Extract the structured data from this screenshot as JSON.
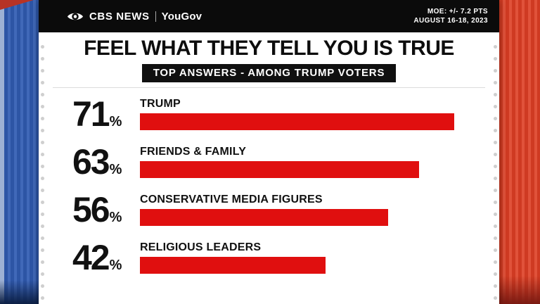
{
  "header": {
    "brand": {
      "cbs": "CBS NEWS",
      "divider": "|",
      "yougov": "YouGov"
    },
    "moe_line1": "MOE: +/- 7.2 PTS",
    "moe_line2": "AUGUST 16-18, 2023"
  },
  "chart_data": {
    "type": "bar",
    "orientation": "horizontal",
    "title": "FEEL WHAT THEY TELL YOU IS TRUE",
    "subtitle": "TOP ANSWERS - AMONG TRUMP VOTERS",
    "categories": [
      "TRUMP",
      "FRIENDS & FAMILY",
      "CONSERVATIVE MEDIA FIGURES",
      "RELIGIOUS LEADERS"
    ],
    "values": [
      71,
      63,
      56,
      42
    ],
    "value_labels": [
      "71%",
      "63%",
      "56%",
      "42%"
    ],
    "percent_sign": "%",
    "bar_color": "#e00f0f",
    "xlim": [
      0,
      78
    ],
    "legend": false,
    "grid": false
  }
}
